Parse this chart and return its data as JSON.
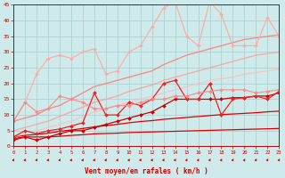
{
  "xlabel": "Vent moyen/en rafales ( km/h )",
  "xlim": [
    0,
    23
  ],
  "ylim": [
    0,
    45
  ],
  "yticks": [
    0,
    5,
    10,
    15,
    20,
    25,
    30,
    35,
    40,
    45
  ],
  "xticks": [
    0,
    1,
    2,
    3,
    4,
    5,
    6,
    7,
    8,
    9,
    10,
    11,
    12,
    13,
    14,
    15,
    16,
    17,
    18,
    19,
    20,
    21,
    22,
    23
  ],
  "bg_color": "#ceeaea",
  "grid_color": "#aacccc",
  "curves": [
    {
      "x": [
        0,
        1,
        2,
        3,
        4,
        5,
        6,
        7,
        8,
        9,
        10,
        11,
        12,
        13,
        14,
        15,
        16,
        17,
        18,
        19,
        20,
        21,
        22,
        23
      ],
      "y": [
        2.5,
        3.0,
        3.0,
        3.0,
        3.2,
        3.5,
        3.7,
        4.0,
        4.1,
        4.2,
        4.4,
        4.5,
        4.6,
        4.7,
        4.8,
        4.9,
        5.0,
        5.1,
        5.2,
        5.3,
        5.4,
        5.5,
        5.6,
        5.7
      ],
      "color": "#dd0000",
      "lw": 0.9,
      "marker": null,
      "alpha": 1.0
    },
    {
      "x": [
        0,
        1,
        2,
        3,
        4,
        5,
        6,
        7,
        8,
        9,
        10,
        11,
        12,
        13,
        14,
        15,
        16,
        17,
        18,
        19,
        20,
        21,
        22,
        23
      ],
      "y": [
        3.0,
        3.5,
        3.8,
        4.2,
        4.8,
        5.2,
        5.7,
        6.2,
        6.6,
        7.0,
        7.5,
        7.9,
        8.2,
        8.6,
        8.9,
        9.2,
        9.5,
        9.8,
        10.1,
        10.3,
        10.5,
        10.7,
        11.0,
        11.2
      ],
      "color": "#dd0000",
      "lw": 0.9,
      "marker": null,
      "alpha": 1.0
    },
    {
      "x": [
        0,
        1,
        2,
        3,
        4,
        5,
        6,
        7,
        8,
        9,
        10,
        11,
        12,
        13,
        14,
        15,
        16,
        17,
        18,
        19,
        20,
        21,
        22,
        23
      ],
      "y": [
        8,
        9,
        10,
        12,
        13,
        15,
        17,
        19,
        20,
        21,
        22,
        23,
        24,
        26,
        27.5,
        29,
        30,
        31,
        32,
        33,
        34,
        34.5,
        35,
        35.5
      ],
      "color": "#ff7777",
      "lw": 1.0,
      "marker": null,
      "alpha": 0.8
    },
    {
      "x": [
        0,
        1,
        2,
        3,
        4,
        5,
        6,
        7,
        8,
        9,
        10,
        11,
        12,
        13,
        14,
        15,
        16,
        17,
        18,
        19,
        20,
        21,
        22,
        23
      ],
      "y": [
        5,
        6,
        7,
        8,
        9.5,
        11,
        12.5,
        14,
        15,
        16,
        17.5,
        18.5,
        19.5,
        21,
        22,
        23,
        24,
        25,
        26,
        27,
        28,
        29,
        29.5,
        30
      ],
      "color": "#ff9999",
      "lw": 1.0,
      "marker": null,
      "alpha": 0.75
    },
    {
      "x": [
        0,
        1,
        2,
        3,
        4,
        5,
        6,
        7,
        8,
        9,
        10,
        11,
        12,
        13,
        14,
        15,
        16,
        17,
        18,
        19,
        20,
        21,
        22,
        23
      ],
      "y": [
        3,
        4,
        5,
        6,
        7,
        8,
        9.5,
        11,
        12,
        13,
        14,
        15,
        16,
        17,
        18,
        19,
        20,
        21,
        21.5,
        22,
        23,
        23.5,
        24,
        24.5
      ],
      "color": "#ffbbbb",
      "lw": 1.0,
      "marker": null,
      "alpha": 0.7
    },
    {
      "x": [
        0,
        1,
        2,
        3,
        4,
        5,
        6,
        7,
        8,
        9,
        10,
        11,
        12,
        13,
        14,
        15,
        16,
        17,
        18,
        19,
        20,
        21,
        22,
        23
      ],
      "y": [
        2,
        3,
        2,
        3,
        4,
        5,
        5,
        6,
        7,
        8,
        9,
        10,
        11,
        13,
        15,
        15,
        15,
        15,
        15,
        15.5,
        15.5,
        16,
        16,
        17
      ],
      "color": "#cc0000",
      "lw": 0.9,
      "marker": "D",
      "markersize": 2.0,
      "alpha": 1.0
    },
    {
      "x": [
        0,
        1,
        2,
        3,
        4,
        5,
        6,
        7,
        8,
        9,
        10,
        11,
        12,
        13,
        14,
        15,
        16,
        17,
        18,
        19,
        20,
        21,
        22,
        23
      ],
      "y": [
        3,
        5,
        4,
        5,
        5.5,
        6.5,
        7.5,
        17,
        10,
        10,
        14,
        13,
        15,
        20,
        21,
        15,
        15,
        20,
        10,
        15,
        15.5,
        16,
        15,
        17.5
      ],
      "color": "#ee2222",
      "lw": 0.9,
      "marker": "D",
      "markersize": 2.0,
      "alpha": 1.0
    },
    {
      "x": [
        0,
        1,
        2,
        3,
        4,
        5,
        6,
        7,
        8,
        9,
        10,
        11,
        12,
        13,
        14,
        15,
        16,
        17,
        18,
        19,
        20,
        21,
        22,
        23
      ],
      "y": [
        8,
        14,
        23,
        28,
        29,
        28,
        30,
        31,
        23,
        24,
        30,
        32,
        38,
        44,
        46,
        35,
        32,
        46,
        42,
        32,
        32,
        32,
        41,
        35
      ],
      "color": "#ffaaaa",
      "lw": 0.9,
      "marker": "D",
      "markersize": 2.0,
      "alpha": 0.9
    },
    {
      "x": [
        0,
        1,
        2,
        3,
        4,
        5,
        6,
        7,
        8,
        9,
        10,
        11,
        12,
        13,
        14,
        15,
        16,
        17,
        18,
        19,
        20,
        21,
        22,
        23
      ],
      "y": [
        8,
        14,
        11,
        12,
        16,
        15,
        14,
        12,
        12,
        13,
        13,
        14,
        15,
        15,
        16,
        16,
        17,
        17.5,
        18,
        18,
        18,
        17,
        17.5,
        18
      ],
      "color": "#ff8888",
      "lw": 0.9,
      "marker": "D",
      "markersize": 2.0,
      "alpha": 0.9
    }
  ],
  "arrow_color": "#cc1111"
}
